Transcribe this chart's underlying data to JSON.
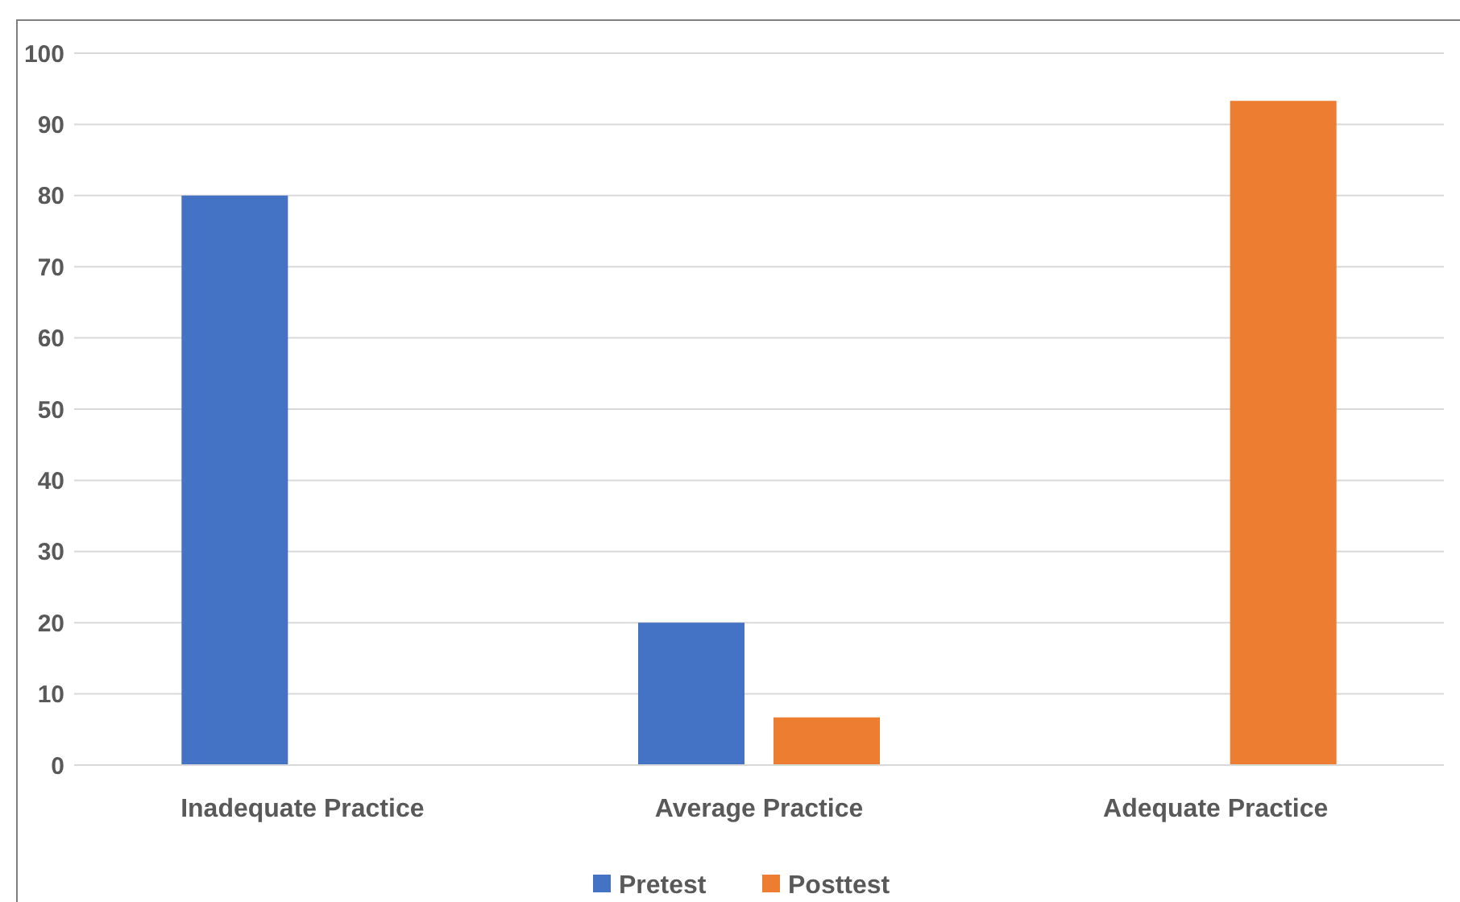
{
  "chart_data": {
    "type": "bar",
    "categories": [
      "Inadequate Practice",
      "Average Practice",
      "Adequate Practice"
    ],
    "series": [
      {
        "name": "Pretest",
        "color": "#4472c4",
        "values": [
          80,
          20,
          0
        ]
      },
      {
        "name": "Posttest",
        "color": "#ed7d31",
        "values": [
          0,
          6.7,
          93.3
        ]
      }
    ],
    "ylim": [
      0,
      100
    ],
    "yticks": [
      0,
      10,
      20,
      30,
      40,
      50,
      60,
      70,
      80,
      90,
      100
    ],
    "grid": "y",
    "legend": "bottom"
  }
}
